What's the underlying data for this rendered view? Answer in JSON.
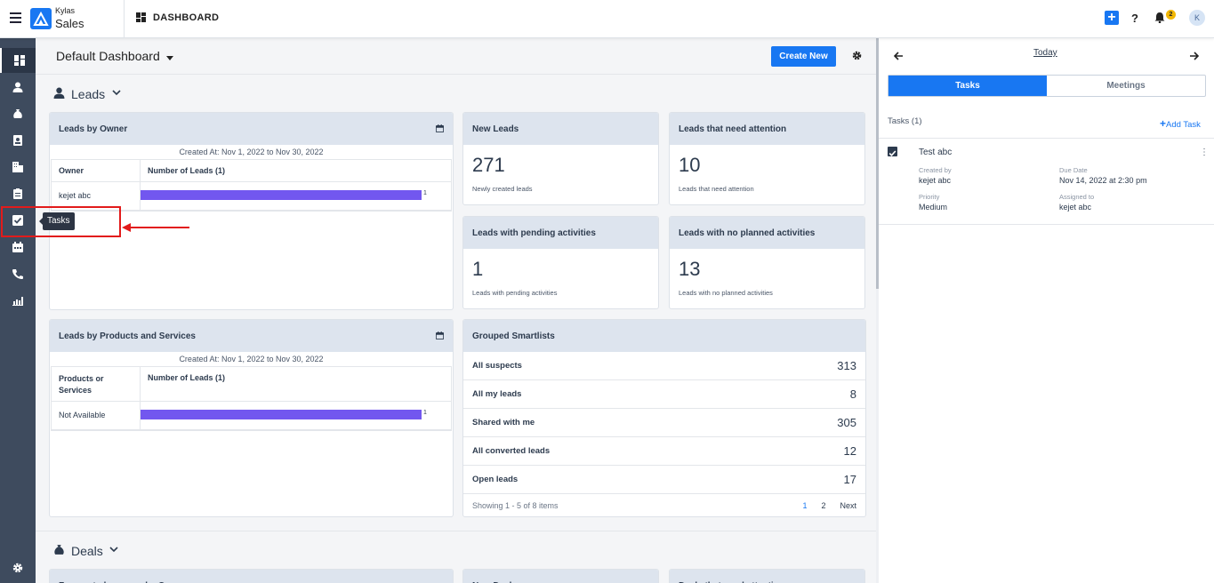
{
  "app": {
    "brand_small": "Kylas",
    "brand": "Sales",
    "page_title": "DASHBOARD",
    "notification_count": "2",
    "avatar_initial": "K"
  },
  "sidebar": {
    "tooltip": "Tasks"
  },
  "dashboard": {
    "name": "Default Dashboard",
    "create_label": "Create New"
  },
  "sections": {
    "leads": "Leads",
    "deals": "Deals"
  },
  "leads_by_owner": {
    "title": "Leads by Owner",
    "created": "Created At: Nov 1, 2022 to Nov 30, 2022",
    "col1": "Owner",
    "col2": "Number of Leads (1)",
    "rows": [
      {
        "name": "kejet abc",
        "value": "1",
        "fraction": 1.0
      }
    ]
  },
  "leads_by_products": {
    "title": "Leads by Products and Services",
    "created": "Created At: Nov 1, 2022 to Nov 30, 2022",
    "col1": "Products or Services",
    "col2": "Number of Leads (1)",
    "rows": [
      {
        "name": "Not Available",
        "value": "1",
        "fraction": 1.0
      }
    ]
  },
  "kpis": [
    {
      "title": "New Leads",
      "value": "271",
      "sub": "Newly created leads"
    },
    {
      "title": "Leads that need attention",
      "value": "10",
      "sub": "Leads that need attention"
    },
    {
      "title": "Leads with pending activities",
      "value": "1",
      "sub": "Leads with pending activities"
    },
    {
      "title": "Leads with no planned activities",
      "value": "13",
      "sub": "Leads with no planned activities"
    }
  ],
  "smartlists": {
    "title": "Grouped Smartlists",
    "rows": [
      {
        "name": "All suspects",
        "value": "313"
      },
      {
        "name": "All my leads",
        "value": "8"
      },
      {
        "name": "Shared with me",
        "value": "305"
      },
      {
        "name": "All converted leads",
        "value": "12"
      },
      {
        "name": "Open leads",
        "value": "17"
      }
    ],
    "showing": "Showing 1 - 5 of 8 items",
    "page1": "1",
    "page2": "2",
    "next": "Next"
  },
  "deals_cards": {
    "c1": "Forecasted revenue by Owner",
    "c2": "New Deals",
    "c3": "Deals that need attention"
  },
  "panel": {
    "today": "Today",
    "tab_tasks": "Tasks",
    "tab_meetings": "Meetings",
    "count": "Tasks (1)",
    "add": "Add Task",
    "task": {
      "name": "Test abc",
      "created_by_label": "Created by",
      "created_by": "kejet abc",
      "due_label": "Due Date",
      "due": "Nov 14, 2022 at 2:30 pm",
      "priority_label": "Priority",
      "priority": "Medium",
      "assigned_label": "Assigned to",
      "assigned": "kejet abc"
    }
  },
  "colors": {
    "accent": "#1877f2",
    "sidebar": "#3e4b5e",
    "bar": "#7257ef",
    "highlight": "#e21b1b"
  }
}
